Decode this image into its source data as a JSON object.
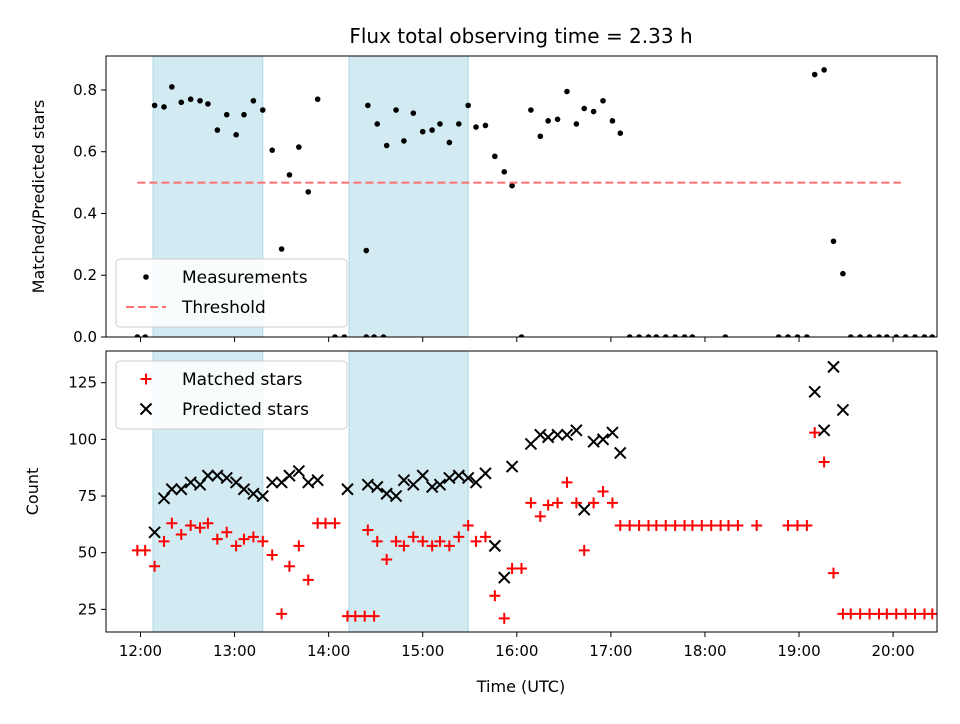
{
  "chart_data": {
    "type": "scatter",
    "title": "Flux total observing time = 2.33 h",
    "xlabel": "Time (UTC)",
    "x_ticks": [
      "12:00",
      "13:00",
      "14:00",
      "15:00",
      "16:00",
      "17:00",
      "18:00",
      "19:00",
      "20:00"
    ],
    "xlim": [
      "11:38",
      "20:28"
    ],
    "shaded_intervals": [
      [
        "12:08",
        "13:18"
      ],
      [
        "14:13",
        "15:29"
      ]
    ],
    "shade_color": "#add8e6",
    "panels": [
      {
        "ylabel": "Matched/Predicted stars",
        "ylim": [
          0,
          0.91
        ],
        "y_ticks": [
          0.0,
          0.2,
          0.4,
          0.6,
          0.8
        ],
        "legend_position": "lower-left",
        "series": [
          {
            "name": "Measurements",
            "marker": "dot",
            "color": "#000000",
            "points": [
              [
                "11:58",
                0
              ],
              [
                "12:03",
                0
              ],
              [
                "12:09",
                0.75
              ],
              [
                "12:15",
                0.745
              ],
              [
                "12:20",
                0.81
              ],
              [
                "12:26",
                0.76
              ],
              [
                "12:32",
                0.77
              ],
              [
                "12:38",
                0.765
              ],
              [
                "12:43",
                0.755
              ],
              [
                "12:49",
                0.67
              ],
              [
                "12:55",
                0.72
              ],
              [
                "13:01",
                0.655
              ],
              [
                "13:06",
                0.72
              ],
              [
                "13:12",
                0.765
              ],
              [
                "13:18",
                0.735
              ],
              [
                "13:24",
                0.605
              ],
              [
                "13:30",
                0.285
              ],
              [
                "13:35",
                0.525
              ],
              [
                "13:41",
                0.615
              ],
              [
                "13:47",
                0.47
              ],
              [
                "13:53",
                0.77
              ],
              [
                "14:04",
                0
              ],
              [
                "14:10",
                0
              ],
              [
                "14:24",
                0
              ],
              [
                "14:29",
                0
              ],
              [
                "14:35",
                0
              ],
              [
                "14:24",
                0.28
              ],
              [
                "14:25",
                0.75
              ],
              [
                "14:31",
                0.69
              ],
              [
                "14:37",
                0.62
              ],
              [
                "14:43",
                0.735
              ],
              [
                "14:48",
                0.635
              ],
              [
                "14:54",
                0.725
              ],
              [
                "15:00",
                0.665
              ],
              [
                "15:06",
                0.67
              ],
              [
                "15:11",
                0.69
              ],
              [
                "15:17",
                0.63
              ],
              [
                "15:23",
                0.69
              ],
              [
                "15:29",
                0.75
              ],
              [
                "15:34",
                0.68
              ],
              [
                "15:40",
                0.685
              ],
              [
                "15:46",
                0.585
              ],
              [
                "15:52",
                0.535
              ],
              [
                "15:57",
                0.49
              ],
              [
                "16:03",
                0
              ],
              [
                "16:09",
                0.735
              ],
              [
                "16:15",
                0.65
              ],
              [
                "16:20",
                0.7
              ],
              [
                "16:26",
                0.705
              ],
              [
                "16:32",
                0.795
              ],
              [
                "16:38",
                0.69
              ],
              [
                "16:43",
                0.74
              ],
              [
                "16:49",
                0.73
              ],
              [
                "16:55",
                0.765
              ],
              [
                "17:01",
                0.7
              ],
              [
                "17:06",
                0.66
              ],
              [
                "17:12",
                0
              ],
              [
                "17:18",
                0
              ],
              [
                "17:24",
                0
              ],
              [
                "17:29",
                0
              ],
              [
                "17:35",
                0
              ],
              [
                "17:41",
                0
              ],
              [
                "17:47",
                0
              ],
              [
                "17:52",
                0
              ],
              [
                "18:13",
                0
              ],
              [
                "18:47",
                0
              ],
              [
                "18:53",
                0
              ],
              [
                "18:59",
                0
              ],
              [
                "19:05",
                0
              ],
              [
                "19:10",
                0.85
              ],
              [
                "19:16",
                0.865
              ],
              [
                "19:22",
                0.31
              ],
              [
                "19:28",
                0.205
              ],
              [
                "19:33",
                0
              ],
              [
                "19:39",
                0
              ],
              [
                "19:45",
                0
              ],
              [
                "19:51",
                0
              ],
              [
                "19:56",
                0
              ],
              [
                "20:02",
                0
              ],
              [
                "20:08",
                0
              ],
              [
                "20:14",
                0
              ],
              [
                "20:20",
                0
              ],
              [
                "20:25",
                0
              ]
            ]
          },
          {
            "name": "Threshold",
            "line": "dashed",
            "color": "#ff7070",
            "points": [
              [
                "11:58",
                0.5
              ],
              [
                "20:05",
                0.5
              ]
            ]
          }
        ]
      },
      {
        "ylabel": "Count",
        "ylim": [
          15,
          139
        ],
        "y_ticks": [
          25,
          50,
          75,
          100,
          125
        ],
        "legend_position": "upper-left",
        "series": [
          {
            "name": "Matched stars",
            "marker": "plus",
            "color": "#ff0000",
            "points": [
              [
                "11:58",
                51
              ],
              [
                "12:03",
                51
              ],
              [
                "12:09",
                44
              ],
              [
                "12:15",
                55
              ],
              [
                "12:20",
                63
              ],
              [
                "12:26",
                58
              ],
              [
                "12:32",
                62
              ],
              [
                "12:38",
                61
              ],
              [
                "12:43",
                63
              ],
              [
                "12:49",
                56
              ],
              [
                "12:55",
                59
              ],
              [
                "13:01",
                53
              ],
              [
                "13:06",
                56
              ],
              [
                "13:12",
                57
              ],
              [
                "13:18",
                55
              ],
              [
                "13:24",
                49
              ],
              [
                "13:30",
                23
              ],
              [
                "13:35",
                44
              ],
              [
                "13:41",
                53
              ],
              [
                "13:47",
                38
              ],
              [
                "13:53",
                63
              ],
              [
                "13:58",
                63
              ],
              [
                "14:04",
                63
              ],
              [
                "14:12",
                22
              ],
              [
                "14:17",
                22
              ],
              [
                "14:23",
                22
              ],
              [
                "14:29",
                22
              ],
              [
                "14:25",
                60
              ],
              [
                "14:31",
                55
              ],
              [
                "14:37",
                47
              ],
              [
                "14:43",
                55
              ],
              [
                "14:48",
                53
              ],
              [
                "14:54",
                57
              ],
              [
                "15:00",
                55
              ],
              [
                "15:06",
                53
              ],
              [
                "15:11",
                55
              ],
              [
                "15:17",
                53
              ],
              [
                "15:23",
                57
              ],
              [
                "15:29",
                62
              ],
              [
                "15:34",
                55
              ],
              [
                "15:40",
                57
              ],
              [
                "15:46",
                31
              ],
              [
                "15:52",
                21
              ],
              [
                "15:57",
                43
              ],
              [
                "16:03",
                43
              ],
              [
                "16:09",
                72
              ],
              [
                "16:15",
                66
              ],
              [
                "16:20",
                71
              ],
              [
                "16:26",
                72
              ],
              [
                "16:32",
                81
              ],
              [
                "16:38",
                72
              ],
              [
                "16:43",
                51
              ],
              [
                "16:49",
                72
              ],
              [
                "16:55",
                77
              ],
              [
                "17:01",
                72
              ],
              [
                "17:06",
                62
              ],
              [
                "17:12",
                62
              ],
              [
                "17:18",
                62
              ],
              [
                "17:24",
                62
              ],
              [
                "17:29",
                62
              ],
              [
                "17:35",
                62
              ],
              [
                "17:41",
                62
              ],
              [
                "17:47",
                62
              ],
              [
                "17:52",
                62
              ],
              [
                "17:58",
                62
              ],
              [
                "18:04",
                62
              ],
              [
                "18:10",
                62
              ],
              [
                "18:15",
                62
              ],
              [
                "18:21",
                62
              ],
              [
                "18:33",
                62
              ],
              [
                "18:53",
                62
              ],
              [
                "18:59",
                62
              ],
              [
                "19:05",
                62
              ],
              [
                "19:10",
                103
              ],
              [
                "19:16",
                90
              ],
              [
                "19:22",
                41
              ],
              [
                "19:28",
                23
              ],
              [
                "19:33",
                23
              ],
              [
                "19:39",
                23
              ],
              [
                "19:45",
                23
              ],
              [
                "19:51",
                23
              ],
              [
                "19:56",
                23
              ],
              [
                "20:02",
                23
              ],
              [
                "20:08",
                23
              ],
              [
                "20:14",
                23
              ],
              [
                "20:20",
                23
              ],
              [
                "20:25",
                23
              ]
            ]
          },
          {
            "name": "Predicted stars",
            "marker": "x",
            "color": "#000000",
            "points": [
              [
                "12:09",
                59
              ],
              [
                "12:15",
                74
              ],
              [
                "12:20",
                78
              ],
              [
                "12:26",
                78
              ],
              [
                "12:32",
                81
              ],
              [
                "12:38",
                80
              ],
              [
                "12:43",
                84
              ],
              [
                "12:49",
                84
              ],
              [
                "12:55",
                83
              ],
              [
                "13:01",
                81
              ],
              [
                "13:06",
                78
              ],
              [
                "13:12",
                76
              ],
              [
                "13:18",
                75
              ],
              [
                "13:24",
                81
              ],
              [
                "13:30",
                81
              ],
              [
                "13:35",
                84
              ],
              [
                "13:41",
                86
              ],
              [
                "13:47",
                81
              ],
              [
                "13:53",
                82
              ],
              [
                "14:12",
                78
              ],
              [
                "14:25",
                80
              ],
              [
                "14:31",
                79
              ],
              [
                "14:37",
                76
              ],
              [
                "14:43",
                75
              ],
              [
                "14:48",
                82
              ],
              [
                "14:54",
                80
              ],
              [
                "15:00",
                84
              ],
              [
                "15:06",
                79
              ],
              [
                "15:11",
                80
              ],
              [
                "15:17",
                83
              ],
              [
                "15:23",
                84
              ],
              [
                "15:29",
                83
              ],
              [
                "15:34",
                81
              ],
              [
                "15:40",
                85
              ],
              [
                "15:46",
                53
              ],
              [
                "15:52",
                39
              ],
              [
                "15:57",
                88
              ],
              [
                "16:09",
                98
              ],
              [
                "16:15",
                102
              ],
              [
                "16:20",
                101
              ],
              [
                "16:26",
                102
              ],
              [
                "16:32",
                102
              ],
              [
                "16:38",
                104
              ],
              [
                "16:43",
                69
              ],
              [
                "16:49",
                99
              ],
              [
                "16:55",
                100
              ],
              [
                "17:01",
                103
              ],
              [
                "17:06",
                94
              ],
              [
                "19:10",
                121
              ],
              [
                "19:16",
                104
              ],
              [
                "19:22",
                132
              ],
              [
                "19:28",
                113
              ]
            ]
          }
        ]
      }
    ]
  }
}
